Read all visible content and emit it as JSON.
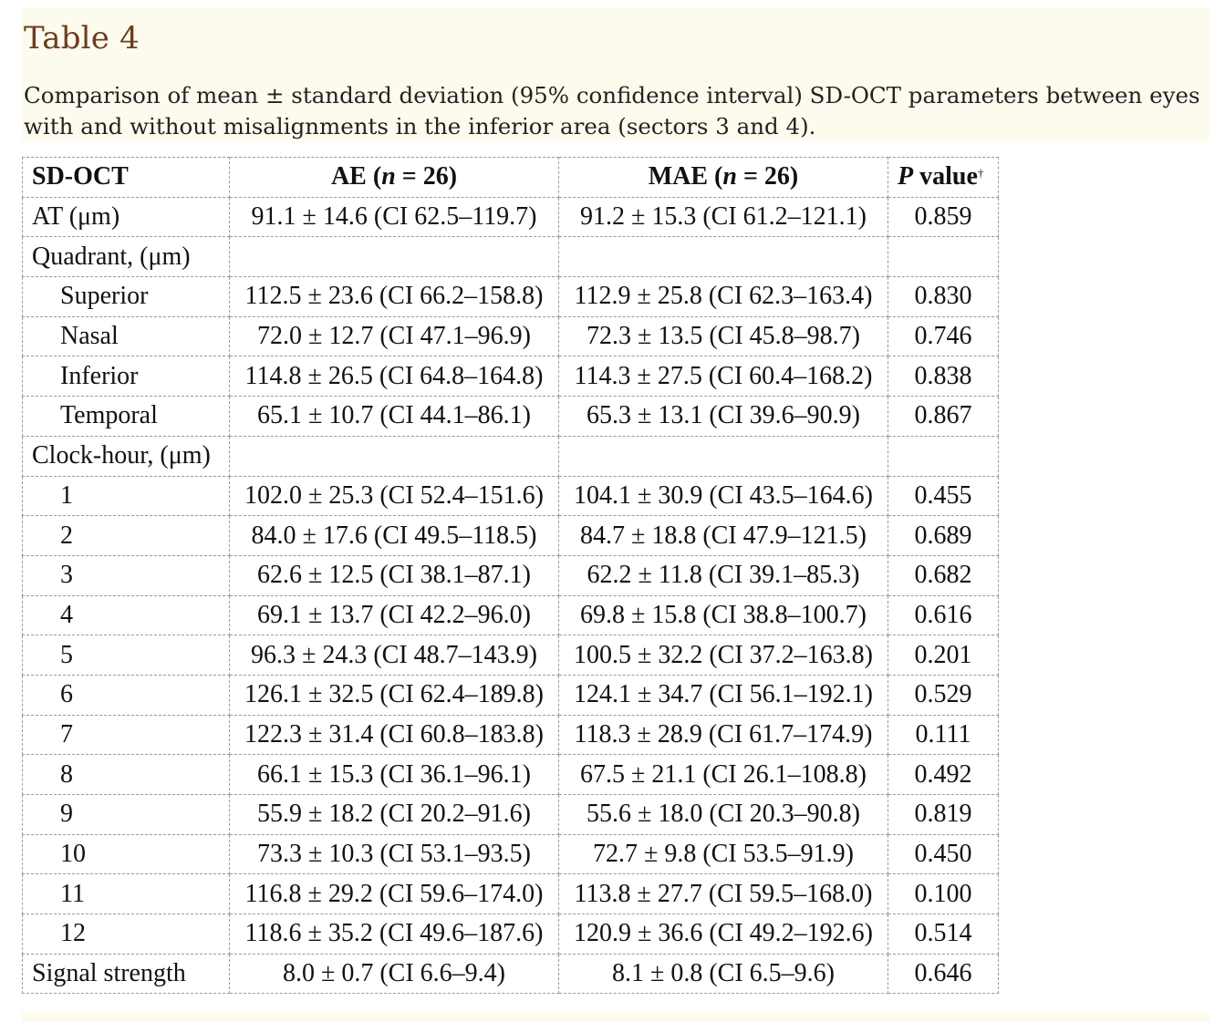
{
  "title": "Table 4",
  "caption": "Comparison of mean ± standard deviation (95% confidence interval) SD-OCT parameters between eyes with and without misalignments in the inferior area (sectors 3 and 4).",
  "table": {
    "headers": {
      "sdoct": "SD-OCT",
      "ae_prefix": "AE (",
      "ae_n": "n",
      "ae_suffix": " = 26)",
      "mae_prefix": "MAE (",
      "mae_n": "n",
      "mae_suffix": " = 26)",
      "p_letter": "P",
      "p_rest": " value",
      "p_sup": "†"
    },
    "rows": [
      {
        "label": "AT (μm)",
        "ae": "91.1 ± 14.6 (CI 62.5–119.7)",
        "mae": "91.2 ± 15.3 (CI 61.2–121.1)",
        "p": "0.859"
      },
      {
        "label": "Quadrant, (μm)",
        "ae": "",
        "mae": "",
        "p": ""
      },
      {
        "label": "Superior",
        "ae": "112.5 ± 23.6 (CI 66.2–158.8)",
        "mae": "112.9 ± 25.8 (CI 62.3–163.4)",
        "p": "0.830"
      },
      {
        "label": "Nasal",
        "ae": "72.0 ± 12.7 (CI 47.1–96.9)",
        "mae": "72.3 ± 13.5 (CI 45.8–98.7)",
        "p": "0.746"
      },
      {
        "label": "Inferior",
        "ae": "114.8 ± 26.5 (CI 64.8–164.8)",
        "mae": "114.3 ± 27.5 (CI 60.4–168.2)",
        "p": "0.838"
      },
      {
        "label": "Temporal",
        "ae": "65.1 ± 10.7 (CI 44.1–86.1)",
        "mae": "65.3 ± 13.1 (CI 39.6–90.9)",
        "p": "0.867"
      },
      {
        "label": "Clock-hour, (μm)",
        "ae": "",
        "mae": "",
        "p": ""
      },
      {
        "label": "1",
        "ae": "102.0 ± 25.3 (CI 52.4–151.6)",
        "mae": "104.1 ± 30.9 (CI 43.5–164.6)",
        "p": "0.455"
      },
      {
        "label": "2",
        "ae": "84.0 ± 17.6 (CI 49.5–118.5)",
        "mae": "84.7 ± 18.8 (CI 47.9–121.5)",
        "p": "0.689"
      },
      {
        "label": "3",
        "ae": "62.6 ± 12.5 (CI 38.1–87.1)",
        "mae": "62.2 ± 11.8 (CI 39.1–85.3)",
        "p": "0.682"
      },
      {
        "label": "4",
        "ae": "69.1 ± 13.7 (CI 42.2–96.0)",
        "mae": "69.8 ± 15.8 (CI 38.8–100.7)",
        "p": "0.616"
      },
      {
        "label": "5",
        "ae": "96.3 ± 24.3 (CI 48.7–143.9)",
        "mae": "100.5 ± 32.2 (CI 37.2–163.8)",
        "p": "0.201"
      },
      {
        "label": "6",
        "ae": "126.1 ± 32.5 (CI 62.4–189.8)",
        "mae": "124.1 ± 34.7 (CI 56.1–192.1)",
        "p": "0.529"
      },
      {
        "label": "7",
        "ae": "122.3 ± 31.4 (CI 60.8–183.8)",
        "mae": "118.3 ± 28.9 (CI 61.7–174.9)",
        "p": "0.111"
      },
      {
        "label": "8",
        "ae": "66.1 ± 15.3 (CI 36.1–96.1)",
        "mae": "67.5 ± 21.1 (CI 26.1–108.8)",
        "p": "0.492"
      },
      {
        "label": "9",
        "ae": "55.9 ± 18.2 (CI 20.2–91.6)",
        "mae": "55.6 ± 18.0 (CI 20.3–90.8)",
        "p": "0.819"
      },
      {
        "label": "10",
        "ae": "73.3 ± 10.3 (CI 53.1–93.5)",
        "mae": "72.7 ± 9.8 (CI 53.5–91.9)",
        "p": "0.450"
      },
      {
        "label": "11",
        "ae": "116.8 ± 29.2 (CI 59.6–174.0)",
        "mae": "113.8 ± 27.7 (CI 59.5–168.0)",
        "p": "0.100"
      },
      {
        "label": "12",
        "ae": "118.6 ± 35.2 (CI 49.6–187.6)",
        "mae": "120.9 ± 36.6 (CI 49.2–192.6)",
        "p": "0.514"
      },
      {
        "label": "Signal strength",
        "ae": "8.0 ± 0.7 (CI 6.6–9.4)",
        "mae": "8.1 ± 0.8 (CI 6.5–9.6)",
        "p": "0.646"
      }
    ]
  }
}
